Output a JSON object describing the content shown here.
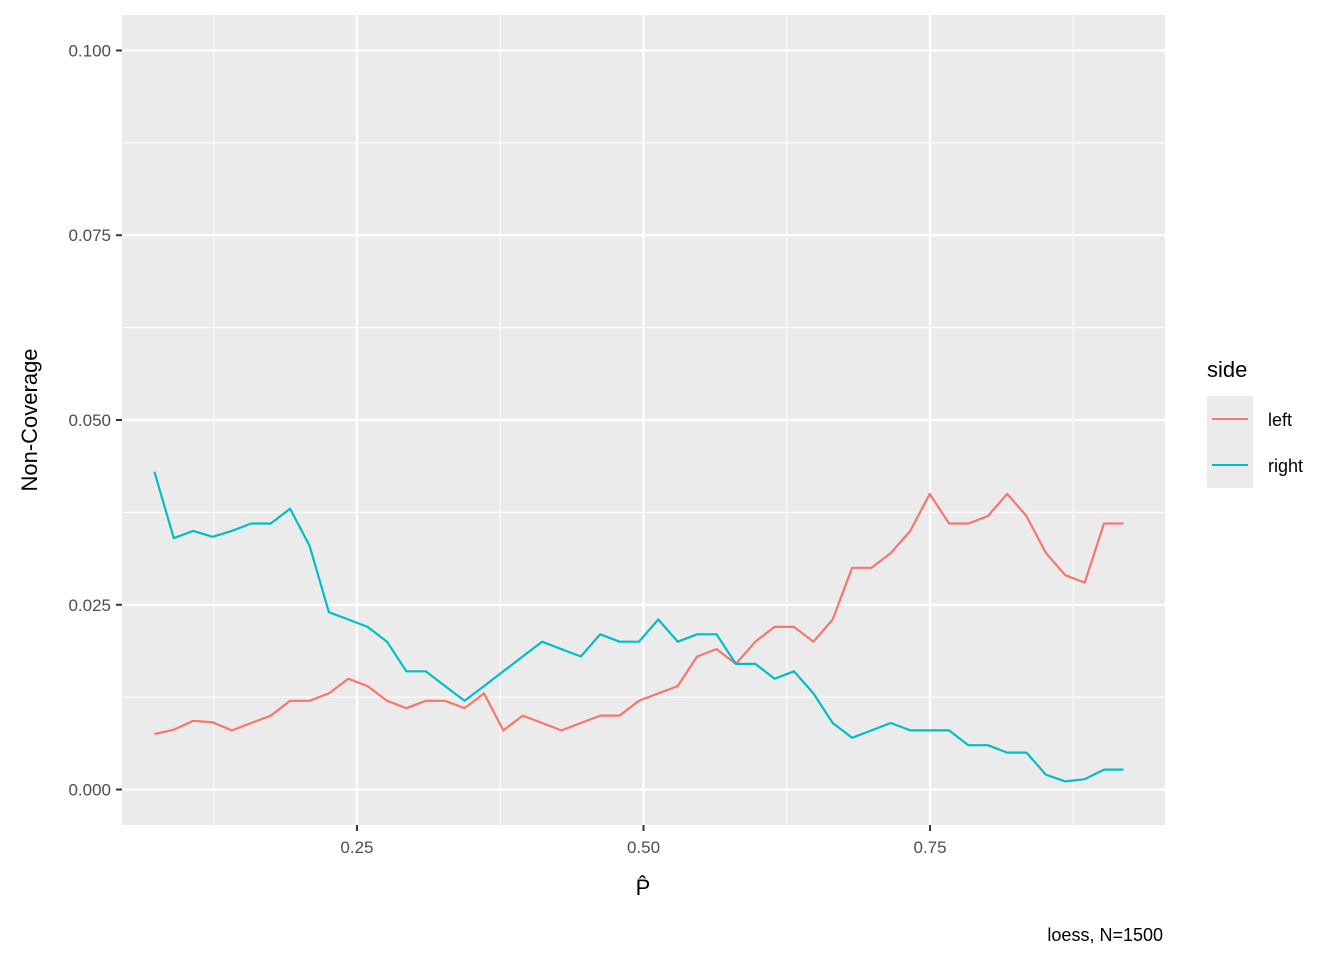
{
  "chart_data": {
    "type": "line",
    "title": "",
    "xlabel": "P̂",
    "ylabel": "Non-Coverage",
    "caption": "loess, N=1500",
    "xlim": [
      0.045,
      0.955
    ],
    "ylim": [
      -0.0048,
      0.1048
    ],
    "x_ticks": [
      0.25,
      0.5,
      0.75
    ],
    "x_tick_labels": [
      "0.25",
      "0.50",
      "0.75"
    ],
    "y_ticks": [
      0,
      0.025,
      0.05,
      0.075,
      0.1
    ],
    "y_tick_labels": [
      "0.000",
      "0.025",
      "0.050",
      "0.075",
      "0.100"
    ],
    "grid": true,
    "legend": {
      "title": "side",
      "position": "right"
    },
    "series": [
      {
        "name": "left",
        "color": "#F8766D",
        "x": [
          0.0733,
          0.0902,
          0.1071,
          0.124,
          0.1409,
          0.1578,
          0.1748,
          0.1917,
          0.2086,
          0.2255,
          0.2424,
          0.2593,
          0.2762,
          0.2931,
          0.31,
          0.3269,
          0.3438,
          0.3608,
          0.3777,
          0.3946,
          0.4115,
          0.4284,
          0.4453,
          0.4622,
          0.4791,
          0.496,
          0.5129,
          0.5298,
          0.5468,
          0.5637,
          0.5806,
          0.5975,
          0.6144,
          0.6313,
          0.6482,
          0.6651,
          0.682,
          0.6989,
          0.7158,
          0.7328,
          0.7497,
          0.7666,
          0.7835,
          0.8004,
          0.8173,
          0.8342,
          0.8511,
          0.868,
          0.8849,
          0.9018,
          0.9188
        ],
        "y": [
          0.0075,
          0.0081,
          0.0093,
          0.0091,
          0.008,
          0.009,
          0.01,
          0.012,
          0.012,
          0.013,
          0.015,
          0.014,
          0.012,
          0.011,
          0.012,
          0.012,
          0.011,
          0.013,
          0.008,
          0.01,
          0.009,
          0.008,
          0.009,
          0.01,
          0.01,
          0.012,
          0.013,
          0.014,
          0.018,
          0.019,
          0.017,
          0.02,
          0.022,
          0.022,
          0.02,
          0.023,
          0.03,
          0.03,
          0.032,
          0.035,
          0.04,
          0.036,
          0.036,
          0.037,
          0.04,
          0.037,
          0.032,
          0.029,
          0.028,
          0.036,
          0.036
        ]
      },
      {
        "name": "right",
        "color": "#00BFC4",
        "x": [
          0.0733,
          0.0902,
          0.1071,
          0.124,
          0.1409,
          0.1578,
          0.1748,
          0.1917,
          0.2086,
          0.2255,
          0.2424,
          0.2593,
          0.2762,
          0.2931,
          0.31,
          0.3269,
          0.3438,
          0.3608,
          0.3777,
          0.3946,
          0.4115,
          0.4284,
          0.4453,
          0.4622,
          0.4791,
          0.496,
          0.5129,
          0.5298,
          0.5468,
          0.5637,
          0.5806,
          0.5975,
          0.6144,
          0.6313,
          0.6482,
          0.6651,
          0.682,
          0.6989,
          0.7158,
          0.7328,
          0.7497,
          0.7666,
          0.7835,
          0.8004,
          0.8173,
          0.8342,
          0.8511,
          0.868,
          0.8849,
          0.9018,
          0.9188
        ],
        "y": [
          0.043,
          0.034,
          0.035,
          0.0342,
          0.035,
          0.036,
          0.036,
          0.038,
          0.033,
          0.024,
          0.023,
          0.022,
          0.02,
          0.016,
          0.016,
          0.014,
          0.012,
          0.014,
          0.016,
          0.018,
          0.02,
          0.019,
          0.018,
          0.021,
          0.02,
          0.02,
          0.023,
          0.02,
          0.021,
          0.021,
          0.017,
          0.017,
          0.015,
          0.016,
          0.013,
          0.009,
          0.007,
          0.008,
          0.009,
          0.008,
          0.008,
          0.008,
          0.006,
          0.006,
          0.005,
          0.005,
          0.002,
          0.0011,
          0.0014,
          0.0027,
          0.0027
        ]
      }
    ]
  }
}
